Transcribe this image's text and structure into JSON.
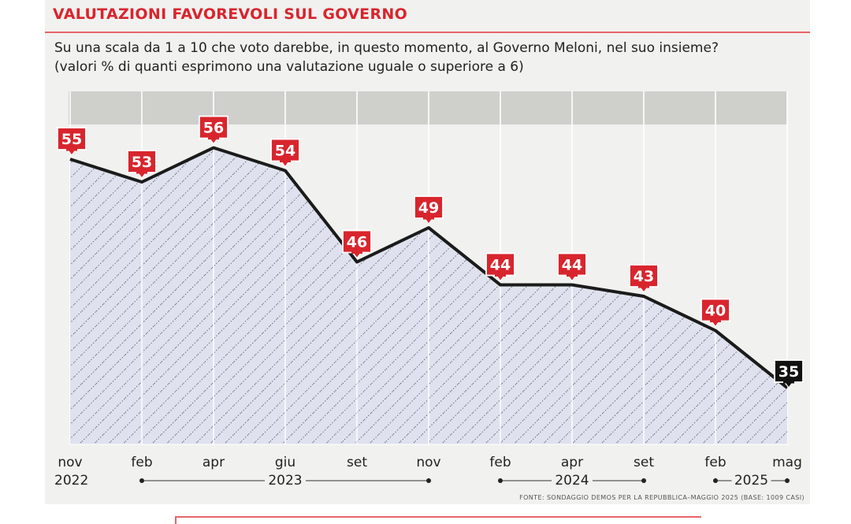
{
  "header": {
    "title": "VALUTAZIONI FAVOREVOLI SUL GOVERNO",
    "subtitle_line1": "Su una scala da 1 a 10 che voto darebbe, in questo momento, al Governo Meloni, nel suo insieme?",
    "subtitle_line2": "(valori % di quanti esprimono una valutazione uguale o superiore a 6)"
  },
  "footer": {
    "source": "FONTE: SONDAGGIO DEMOS PER LA REPUBBLICA–MAGGIO 2025 (BASE: 1009 CASI)"
  },
  "colors": {
    "accent": "#d8252d",
    "line": "#1b1b1b",
    "area_fill": "#dfe2ee",
    "plot_bg": "#cfcfcc",
    "last_label": "#111111"
  },
  "chart_data": {
    "type": "area",
    "x": [
      "nov",
      "feb",
      "apr",
      "giu",
      "set",
      "nov",
      "feb",
      "apr",
      "set",
      "feb",
      "mag"
    ],
    "values": [
      55,
      53,
      56,
      54,
      46,
      49,
      44,
      44,
      43,
      40,
      35
    ],
    "year_labels": [
      {
        "label": "2022"
      },
      {
        "label": "2023"
      },
      {
        "label": "2024"
      },
      {
        "label": "2025"
      }
    ],
    "ylim": [
      20,
      62
    ],
    "grid": "vertical",
    "legend": "none"
  }
}
